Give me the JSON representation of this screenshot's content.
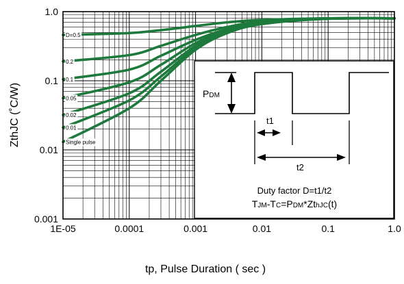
{
  "chart_data": {
    "type": "line",
    "title": "",
    "xlabel": "tp, Pulse Duration ( sec )",
    "ylabel": "ZthJC (˚C/W)",
    "x_scale": "log",
    "y_scale": "log",
    "xlim": [
      1e-05,
      1.0
    ],
    "ylim": [
      0.001,
      1.0
    ],
    "grid": true,
    "x_ticks": [
      {
        "value": 1e-05,
        "label": "1E-05"
      },
      {
        "value": 0.0001,
        "label": "0.0001"
      },
      {
        "value": 0.001,
        "label": "0.001"
      },
      {
        "value": 0.01,
        "label": "0.01"
      },
      {
        "value": 0.1,
        "label": "0.1"
      },
      {
        "value": 1.0,
        "label": "1.0"
      }
    ],
    "y_ticks": [
      {
        "value": 0.001,
        "label": "0.001"
      },
      {
        "value": 0.01,
        "label": "0.01"
      },
      {
        "value": 0.1,
        "label": "0.1"
      },
      {
        "value": 1.0,
        "label": "1.0"
      }
    ],
    "line_color": "#1d7a3c",
    "series": [
      {
        "name": "D=0.5",
        "x": [
          1e-05,
          0.0001,
          0.0003,
          0.001,
          0.003,
          0.01,
          0.1,
          1.0
        ],
        "y": [
          0.46,
          0.49,
          0.54,
          0.62,
          0.7,
          0.76,
          0.8,
          0.8
        ]
      },
      {
        "name": "0.2",
        "x": [
          1e-05,
          0.0001,
          0.0003,
          0.001,
          0.003,
          0.01,
          0.1,
          1.0
        ],
        "y": [
          0.19,
          0.235,
          0.32,
          0.46,
          0.6,
          0.72,
          0.8,
          0.8
        ]
      },
      {
        "name": "0.1",
        "x": [
          1e-05,
          0.0001,
          0.0003,
          0.001,
          0.003,
          0.01,
          0.1,
          1.0
        ],
        "y": [
          0.105,
          0.145,
          0.23,
          0.39,
          0.56,
          0.7,
          0.79,
          0.8
        ]
      },
      {
        "name": "0.05",
        "x": [
          1e-05,
          0.0001,
          0.0003,
          0.001,
          0.003,
          0.01,
          0.1,
          1.0
        ],
        "y": [
          0.056,
          0.095,
          0.17,
          0.35,
          0.53,
          0.69,
          0.79,
          0.8
        ]
      },
      {
        "name": "0.02",
        "x": [
          1e-05,
          0.0001,
          0.0003,
          0.001,
          0.003,
          0.01,
          0.1,
          1.0
        ],
        "y": [
          0.032,
          0.066,
          0.135,
          0.32,
          0.51,
          0.68,
          0.79,
          0.8
        ]
      },
      {
        "name": "0.01",
        "x": [
          1e-05,
          0.0001,
          0.0003,
          0.001,
          0.003,
          0.01,
          0.1,
          1.0
        ],
        "y": [
          0.021,
          0.052,
          0.115,
          0.3,
          0.5,
          0.67,
          0.79,
          0.8
        ]
      },
      {
        "name": "Single pulse",
        "x": [
          1e-05,
          0.0001,
          0.0003,
          0.001,
          0.003,
          0.01,
          0.1,
          1.0
        ],
        "y": [
          0.013,
          0.04,
          0.1,
          0.28,
          0.49,
          0.66,
          0.79,
          0.8
        ]
      }
    ],
    "inset": {
      "pdm_label_main": "P",
      "pdm_label_sub": "DM",
      "t1_label": "t1",
      "t2_label": "t2",
      "duty_text": "Duty factor D=t1/t2",
      "formula_parts": [
        {
          "text": "T",
          "sub": false
        },
        {
          "text": "JM",
          "sub": true
        },
        {
          "text": "-T",
          "sub": false
        },
        {
          "text": "C",
          "sub": true
        },
        {
          "text": "=P",
          "sub": false
        },
        {
          "text": "DM",
          "sub": true
        },
        {
          "text": "*Zt",
          "sub": false
        },
        {
          "text": "hJC",
          "sub": true
        },
        {
          "text": "(t)",
          "sub": false
        }
      ]
    }
  }
}
